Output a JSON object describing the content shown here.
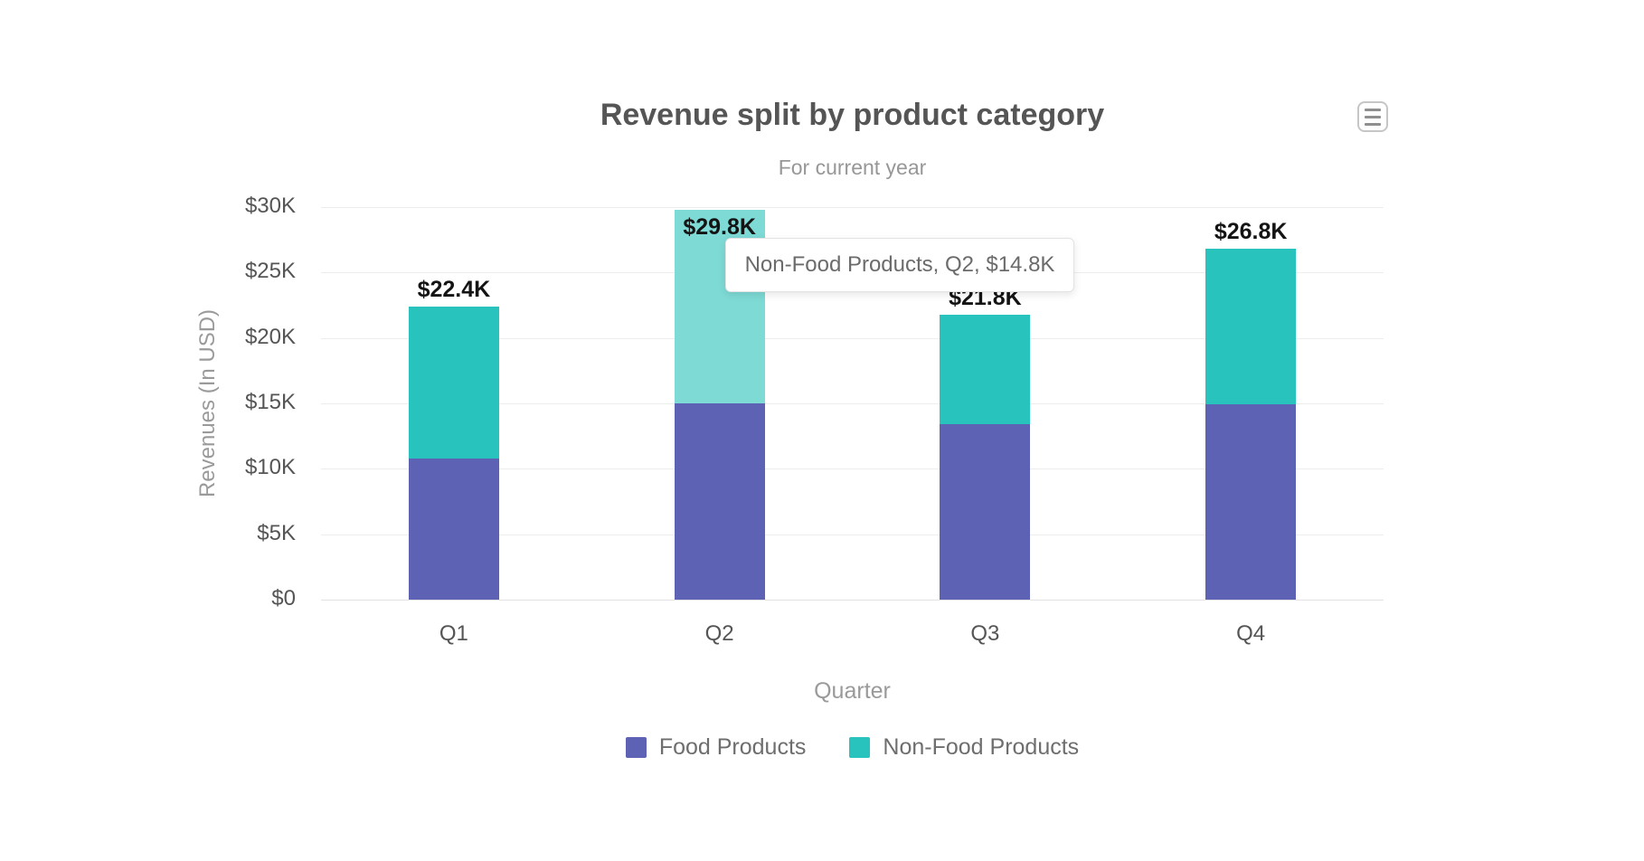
{
  "header": {
    "title": "Revenue split by product category",
    "subtitle": "For current year"
  },
  "menu": {
    "icon": "hamburger-menu-icon"
  },
  "axes": {
    "y_title": "Revenues (In USD)",
    "x_title": "Quarter",
    "y_ticks": [
      "$30K",
      "$25K",
      "$20K",
      "$15K",
      "$10K",
      "$5K",
      "$0"
    ]
  },
  "tooltip": {
    "text": "Non-Food Products, Q2, $14.8K"
  },
  "legend": {
    "items": [
      {
        "label": "Food Products",
        "color": "#5d62b5"
      },
      {
        "label": "Non-Food Products",
        "color": "#29c3be"
      }
    ]
  },
  "chart_data": {
    "type": "bar",
    "stacked": true,
    "title": "Revenue split by product category",
    "subtitle": "For current year",
    "xlabel": "Quarter",
    "ylabel": "Revenues (In USD)",
    "categories": [
      "Q1",
      "Q2",
      "Q3",
      "Q4"
    ],
    "series": [
      {
        "name": "Food Products",
        "color": "#5d62b5",
        "values": [
          10.8,
          15.0,
          13.4,
          14.9
        ]
      },
      {
        "name": "Non-Food Products",
        "color": "#29c3be",
        "values": [
          11.6,
          14.8,
          8.4,
          11.9
        ]
      }
    ],
    "totals": [
      22.4,
      29.8,
      21.8,
      26.8
    ],
    "total_labels": [
      "$22.4K",
      "$29.8K",
      "$21.8K",
      "$26.8K"
    ],
    "ylim": [
      0,
      30
    ],
    "y_tick_step": 5,
    "grid": true,
    "legend_position": "bottom",
    "highlight": {
      "series": "Non-Food Products",
      "category": "Q2",
      "color": "#7edad5"
    }
  }
}
